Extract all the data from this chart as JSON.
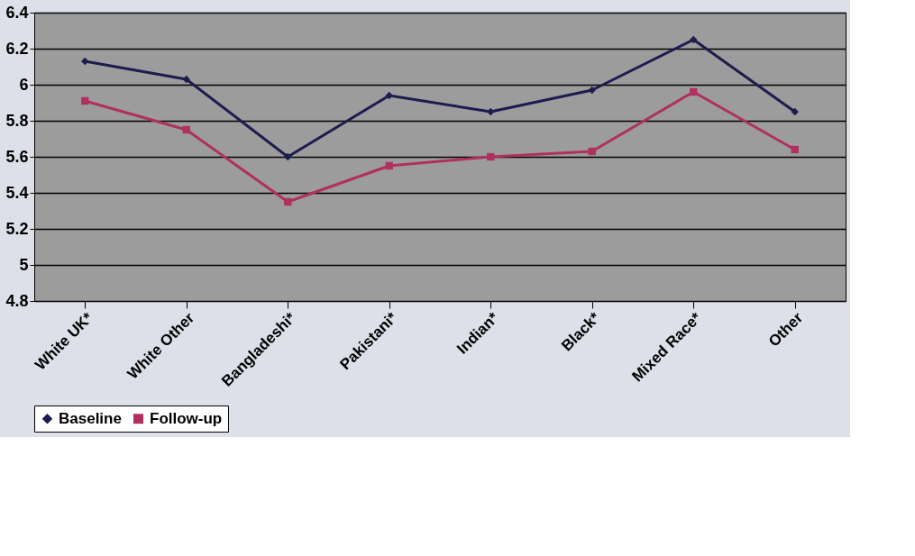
{
  "chart_data": {
    "type": "line",
    "categories": [
      "White UK*",
      "White Other",
      "Bangladeshi*",
      "Pakistani*",
      "Indian*",
      "Black*",
      "Mixed Race*",
      "Other"
    ],
    "series": [
      {
        "name": "Baseline",
        "color": "#1c1c4e",
        "marker": "diamond",
        "values": [
          6.13,
          6.03,
          5.6,
          5.94,
          5.85,
          5.97,
          6.25,
          5.85
        ]
      },
      {
        "name": "Follow-up",
        "color": "#b03060",
        "marker": "square",
        "values": [
          5.91,
          5.75,
          5.35,
          5.55,
          5.6,
          5.63,
          5.96,
          5.64
        ]
      }
    ],
    "ylim": [
      4.8,
      6.4
    ],
    "yticks": [
      4.8,
      5,
      5.2,
      5.4,
      5.6,
      5.8,
      6,
      6.2,
      6.4
    ],
    "grid": "y",
    "legend": "bottom",
    "line_style": "solid"
  }
}
